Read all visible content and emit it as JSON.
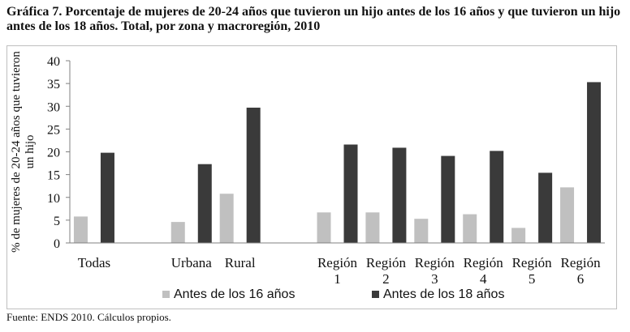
{
  "title": "Gráfica 7. Porcentaje de mujeres de 20-24 años que tuvieron un hijo antes de los 16 años y que tuvieron un hijo antes de los 18 años. Total, por zona y macroregión, 2010",
  "source": "Fuente: ENDS 2010. Cálculos propios.",
  "colors": {
    "series1": "#c0c0c0",
    "series2": "#3a3a3a",
    "axis": "#808080"
  },
  "chart_data": {
    "type": "bar",
    "ylabel": "% de mujeres de 20-24 años que tuvieron un hijo",
    "ylim": [
      0,
      40
    ],
    "yticks": [
      0,
      5,
      10,
      15,
      20,
      25,
      30,
      35,
      40
    ],
    "grid": false,
    "legend": "bottom",
    "categories": [
      [
        "Todas"
      ],
      [],
      [
        "Urbana"
      ],
      [
        "Rural"
      ],
      [],
      [
        "Región",
        "1"
      ],
      [
        "Región",
        "2"
      ],
      [
        "Región",
        "3"
      ],
      [
        "Región",
        "4"
      ],
      [
        "Región",
        "5"
      ],
      [
        "Región",
        "6"
      ]
    ],
    "series": [
      {
        "name": "Antes de los 16 años",
        "values": [
          5.8,
          null,
          4.6,
          10.8,
          null,
          6.7,
          6.7,
          5.3,
          6.3,
          3.3,
          12.2
        ]
      },
      {
        "name": "Antes de los 18 años",
        "values": [
          19.8,
          null,
          17.3,
          29.7,
          null,
          21.6,
          20.9,
          19.1,
          20.2,
          15.4,
          35.3
        ]
      }
    ]
  }
}
